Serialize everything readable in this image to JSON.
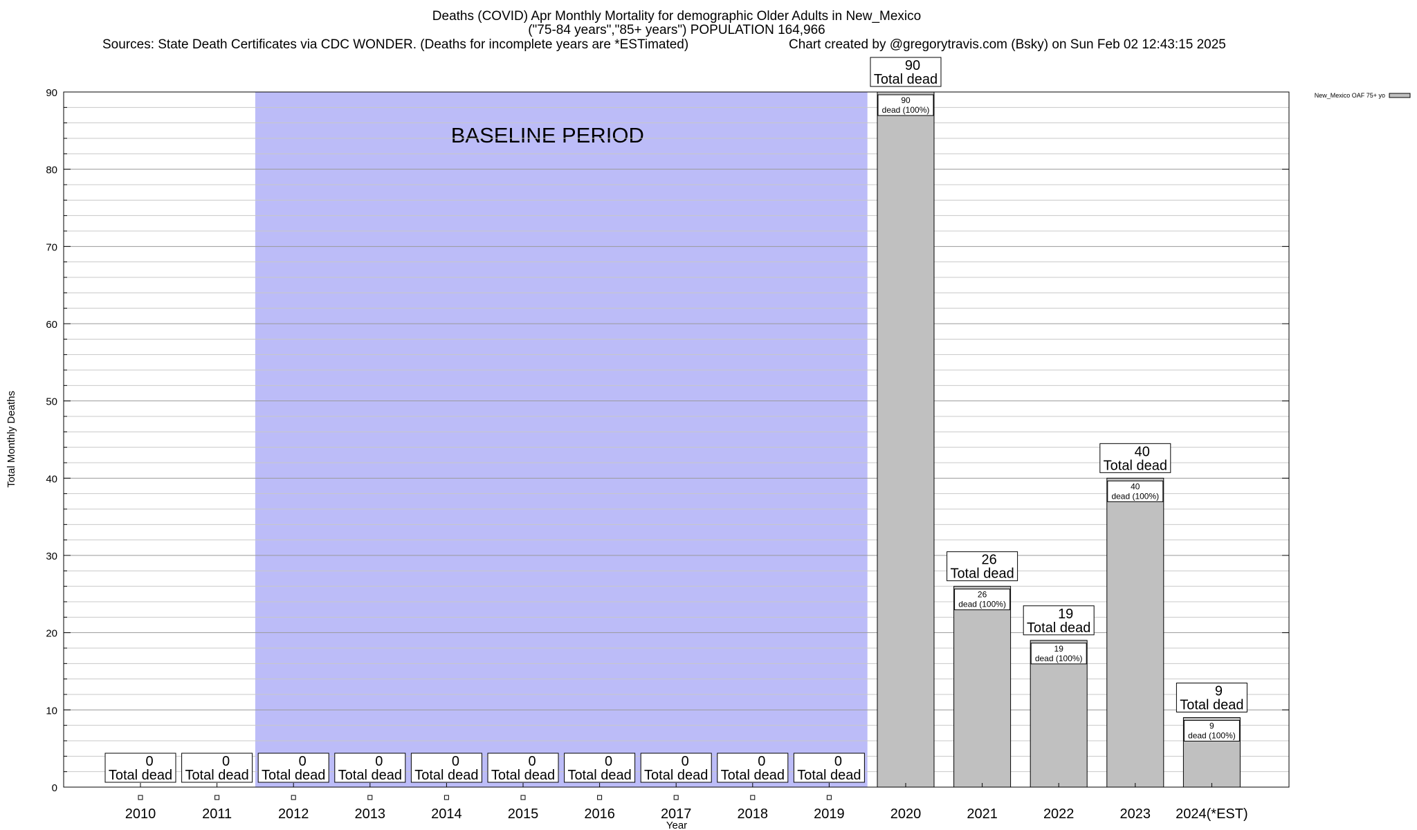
{
  "chart_data": {
    "type": "bar",
    "title": "Deaths (COVID) Apr Monthly Mortality for demographic Older Adults in New_Mexico",
    "subtitle": "(\"75-84 years\",\"85+ years\") POPULATION 164,966",
    "sources": "Sources: State Death Certificates via CDC WONDER. (Deaths for incomplete years are *ESTimated)",
    "credit": "Chart created by @gregorytravis.com (Bsky) on Sun Feb 02 12:43:15 2025",
    "xlabel": "Year",
    "ylabel": "Total Monthly Deaths",
    "ylim": [
      0,
      90
    ],
    "yticks": [
      0,
      10,
      20,
      30,
      40,
      50,
      60,
      70,
      80,
      90
    ],
    "categories": [
      "2010",
      "2011",
      "2012",
      "2013",
      "2014",
      "2015",
      "2016",
      "2017",
      "2018",
      "2019",
      "2020",
      "2021",
      "2022",
      "2023",
      "2024(*EST)"
    ],
    "series": [
      {
        "name": "New_Mexico OAF 75+ yo",
        "color": "#c0c0c0",
        "values": [
          0,
          0,
          0,
          0,
          0,
          0,
          0,
          0,
          0,
          0,
          90,
          26,
          19,
          40,
          9
        ]
      }
    ],
    "total_label": "Total dead",
    "inner_label": "dead (100%)",
    "baseline": {
      "label": "BASELINE PERIOD",
      "from": "2012",
      "to": "2019",
      "color": "#bcbcf8"
    },
    "grid": true,
    "legend_position": "top-right"
  }
}
